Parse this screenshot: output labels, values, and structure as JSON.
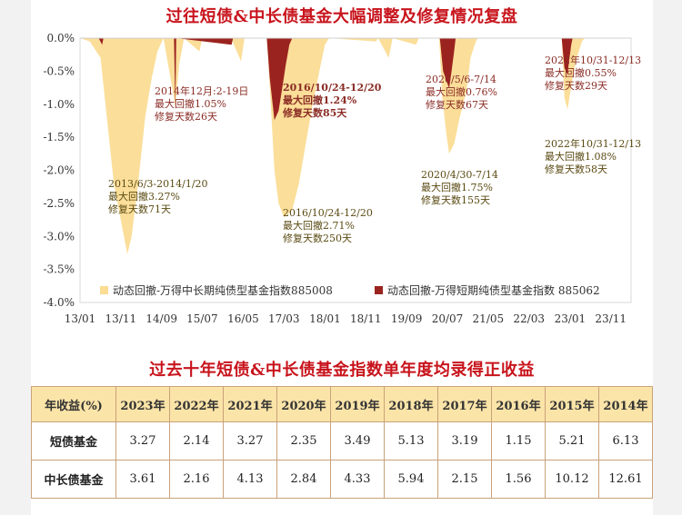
{
  "chart_title": "过往短债&中长债基金大幅调整及修复情况复盘",
  "table_title": "过去十年短债&中长债基金指数单年度均录得正收益",
  "chart_data": {
    "type": "area",
    "y_ticks": [
      "0.0%",
      "-0.5%",
      "-1.0%",
      "-1.5%",
      "-2.0%",
      "-2.5%",
      "-3.0%",
      "-3.5%",
      "-4.0%"
    ],
    "x_ticks": [
      "13/01",
      "13/11",
      "14/09",
      "15/07",
      "16/05",
      "17/03",
      "18/01",
      "18/11",
      "19/09",
      "20/07",
      "21/05",
      "22/03",
      "23/01",
      "23/11"
    ],
    "ylim": [
      -4.0,
      0.0
    ],
    "xlim": [
      "2013-01-01",
      "2024-03-31"
    ],
    "legend_position": "bottom",
    "series": [
      {
        "name": "动态回撤-万得中长期纯债型基金指数885008",
        "color": "#fbdc93",
        "points": [
          [
            "2013-01-01",
            0
          ],
          [
            "2013-03-15",
            -0.05
          ],
          [
            "2013-06-03",
            -0.3
          ],
          [
            "2013-07-20",
            -1.2
          ],
          [
            "2013-09-10",
            -2.2
          ],
          [
            "2013-11-15",
            -2.9
          ],
          [
            "2013-12-20",
            -3.27
          ],
          [
            "2014-01-20",
            -3.0
          ],
          [
            "2014-03-10",
            -2.2
          ],
          [
            "2014-05-01",
            -1.2
          ],
          [
            "2014-06-20",
            -0.6
          ],
          [
            "2014-08-01",
            -0.2
          ],
          [
            "2014-09-15",
            0
          ],
          [
            "2014-12-02",
            -0.9
          ],
          [
            "2014-12-12",
            -1.05
          ],
          [
            "2015-01-10",
            -0.4
          ],
          [
            "2015-02-15",
            0
          ],
          [
            "2015-06-10",
            -0.2
          ],
          [
            "2015-07-01",
            0
          ],
          [
            "2016-01-10",
            -0.1
          ],
          [
            "2016-02-01",
            0
          ],
          [
            "2016-04-15",
            -0.35
          ],
          [
            "2016-05-10",
            0
          ],
          [
            "2016-10-24",
            0
          ],
          [
            "2016-11-20",
            -0.9
          ],
          [
            "2016-12-20",
            -2.0
          ],
          [
            "2017-01-20",
            -2.5
          ],
          [
            "2017-03-01",
            -2.71
          ],
          [
            "2017-05-01",
            -2.6
          ],
          [
            "2017-06-20",
            -2.2
          ],
          [
            "2017-08-10",
            -1.6
          ],
          [
            "2017-10-01",
            -1.0
          ],
          [
            "2017-11-20",
            -0.5
          ],
          [
            "2017-12-31",
            -0.1
          ],
          [
            "2018-01-31",
            0
          ],
          [
            "2019-01-15",
            -0.05
          ],
          [
            "2019-02-01",
            0
          ],
          [
            "2019-04-20",
            -0.3
          ],
          [
            "2019-05-20",
            0
          ],
          [
            "2019-11-10",
            -0.1
          ],
          [
            "2019-12-01",
            0
          ],
          [
            "2020-04-30",
            0
          ],
          [
            "2020-05-25",
            -0.9
          ],
          [
            "2020-06-20",
            -1.4
          ],
          [
            "2020-07-14",
            -1.75
          ],
          [
            "2020-08-20",
            -1.6
          ],
          [
            "2020-10-01",
            -1.2
          ],
          [
            "2020-11-20",
            -0.8
          ],
          [
            "2020-12-20",
            -0.3
          ],
          [
            "2021-01-20",
            -0.1
          ],
          [
            "2021-02-10",
            0
          ],
          [
            "2022-09-15",
            0
          ],
          [
            "2022-10-31",
            0
          ],
          [
            "2022-11-20",
            -0.9
          ],
          [
            "2022-12-13",
            -1.08
          ],
          [
            "2023-01-20",
            -0.6
          ],
          [
            "2023-02-20",
            -0.3
          ],
          [
            "2023-03-31",
            -0.05
          ],
          [
            "2023-04-20",
            0
          ],
          [
            "2024-03-31",
            0
          ]
        ]
      },
      {
        "name": "动态回撤-万得短期纯债型基金指数 885062",
        "color": "#9b231f",
        "points": [
          [
            "2013-01-01",
            0
          ],
          [
            "2013-05-20",
            0
          ],
          [
            "2013-06-15",
            -0.1
          ],
          [
            "2013-06-25",
            0
          ],
          [
            "2014-12-02",
            0
          ],
          [
            "2014-12-12",
            -1.05
          ],
          [
            "2014-12-19",
            0
          ],
          [
            "2016-02-05",
            -0.1
          ],
          [
            "2016-02-15",
            0
          ],
          [
            "2016-10-24",
            0
          ],
          [
            "2016-11-15",
            -0.6
          ],
          [
            "2016-12-20",
            -1.24
          ],
          [
            "2017-01-20",
            -1.1
          ],
          [
            "2017-02-20",
            -0.7
          ],
          [
            "2017-03-15",
            -0.4
          ],
          [
            "2017-04-10",
            -0.1
          ],
          [
            "2017-05-01",
            0
          ],
          [
            "2020-05-06",
            0
          ],
          [
            "2020-05-30",
            -0.5
          ],
          [
            "2020-07-14",
            -0.76
          ],
          [
            "2020-08-01",
            -0.5
          ],
          [
            "2020-08-20",
            -0.2
          ],
          [
            "2020-09-01",
            0
          ],
          [
            "2022-10-31",
            0
          ],
          [
            "2022-11-20",
            -0.45
          ],
          [
            "2022-12-13",
            -0.55
          ],
          [
            "2022-12-25",
            -0.35
          ],
          [
            "2023-01-10",
            -0.1
          ],
          [
            "2023-01-20",
            0
          ],
          [
            "2024-03-31",
            0
          ]
        ]
      }
    ],
    "annotations": [
      {
        "lines": [
          "2013/6/3-2014/1/20",
          "最大回撤3.27%",
          "修复天数71天"
        ],
        "color": "#5a4a12"
      },
      {
        "lines": [
          "2014年12月:2-19日",
          "最大回撤1.05%",
          "修复天数26天"
        ],
        "color": "#8a2c25"
      },
      {
        "lines": [
          "2016/10/24-12/20",
          "最大回撤1.24%",
          "修复天数85天"
        ],
        "color": "#8a2c25"
      },
      {
        "lines": [
          "2016/10/24-12/20",
          "最大回撤2.71%",
          "修复天数250天"
        ],
        "color": "#5a4a12"
      },
      {
        "lines": [
          "2020/5/6-7/14",
          "最大回撤0.76%",
          "修复天数67天"
        ],
        "color": "#8a2c25"
      },
      {
        "lines": [
          "2020/4/30-7/14",
          "最大回撤1.75%",
          "修复天数155天"
        ],
        "color": "#5a4a12"
      },
      {
        "lines": [
          "2022年10/31-12/13",
          "最大回撤0.55%",
          "修复天数29天"
        ],
        "color": "#8a2c25"
      },
      {
        "lines": [
          "2022年10/31-12/13",
          "最大回撤1.08%",
          "修复天数58天"
        ],
        "color": "#5a4a12"
      }
    ]
  },
  "table": {
    "header_label": "年收益(%)",
    "years": [
      "2023年",
      "2022年",
      "2021年",
      "2020年",
      "2019年",
      "2018年",
      "2017年",
      "2016年",
      "2015年",
      "2014年"
    ],
    "rows": [
      {
        "label": "短债基金",
        "values": [
          "3.27",
          "2.14",
          "3.27",
          "2.35",
          "3.49",
          "5.13",
          "3.19",
          "1.15",
          "5.21",
          "6.13"
        ]
      },
      {
        "label": "中长债基金",
        "values": [
          "3.61",
          "2.16",
          "4.13",
          "2.84",
          "4.33",
          "5.94",
          "2.15",
          "1.56",
          "10.12",
          "12.61"
        ]
      }
    ]
  }
}
